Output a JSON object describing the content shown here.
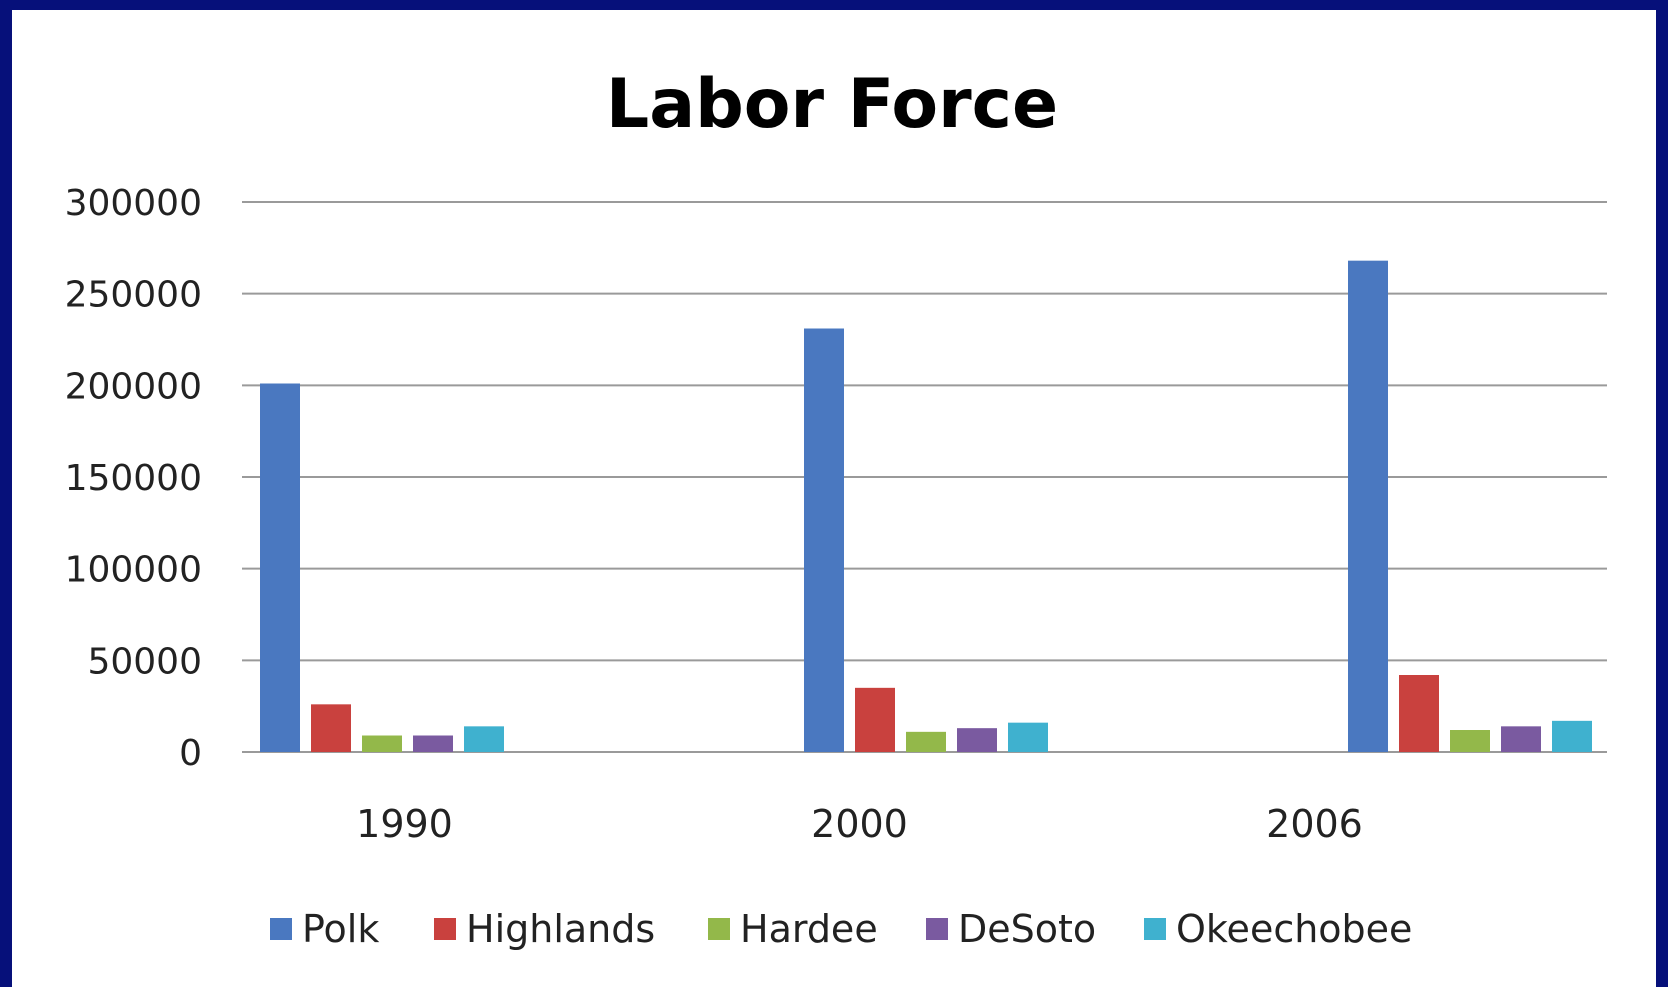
{
  "chart_data": {
    "type": "bar",
    "title": "Labor Force",
    "xlabel": "",
    "ylabel": "",
    "categories": [
      "1990",
      "2000",
      "2006"
    ],
    "ylim": [
      0,
      300000
    ],
    "yticks": [
      "300000",
      "250000",
      "200000",
      "150000",
      "100000",
      "50000",
      "0"
    ],
    "grid": true,
    "legend_position": "bottom",
    "series": [
      {
        "name": "Polk",
        "color": "#4a78c0",
        "values": [
          201000,
          231000,
          268000
        ]
      },
      {
        "name": "Highlands",
        "color": "#c9413e",
        "values": [
          26000,
          35000,
          42000
        ]
      },
      {
        "name": "Hardee",
        "color": "#93b84a",
        "values": [
          9000,
          11000,
          12000
        ]
      },
      {
        "name": "DeSoto",
        "color": "#7a5aa0",
        "values": [
          9000,
          13000,
          14000
        ]
      },
      {
        "name": "Okeechobee",
        "color": "#3fb1cf",
        "values": [
          14000,
          16000,
          17000
        ]
      }
    ]
  }
}
